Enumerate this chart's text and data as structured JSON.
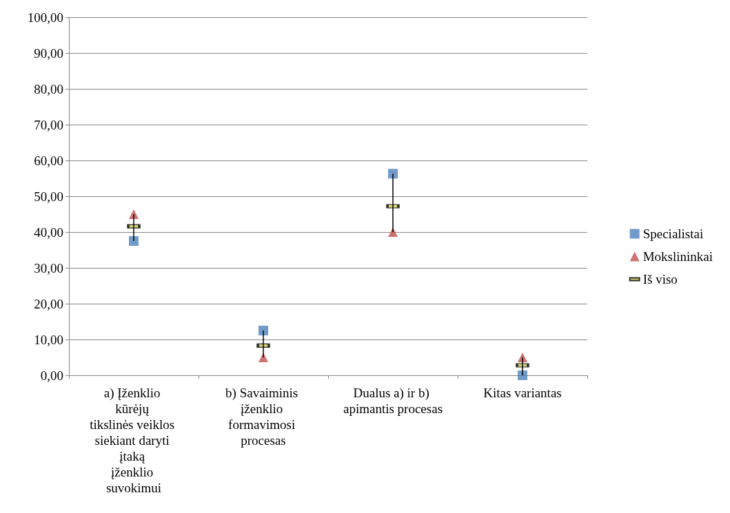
{
  "chart_data": {
    "type": "scatter",
    "categories": [
      "a) Įženklio kūrėjų tikslinės veiklos siekiant daryti įtaką įženklio suvokimui",
      "b) Savaiminis įženklio formavimosi procesas",
      "Dualus a) ir b) apimantis procesas",
      "Kitas variantas"
    ],
    "series": [
      {
        "name": "Specialistai",
        "color": "#4f81bd",
        "marker": "square",
        "values": [
          37.5,
          12.5,
          56.3,
          0
        ]
      },
      {
        "name": "Mokslininkai",
        "color": "#c0504d",
        "marker": "triangle",
        "values": [
          45,
          5,
          40,
          5
        ]
      },
      {
        "name": "Iš viso",
        "color": "#000000",
        "values": [
          41.6,
          8.3,
          47.2,
          2.8
        ]
      }
    ],
    "ylim": [
      0,
      100
    ],
    "yticks": [
      {
        "value": 0,
        "label": "0,00"
      },
      {
        "value": 10,
        "label": "10,00"
      },
      {
        "value": 20,
        "label": "20,00"
      },
      {
        "value": 30,
        "label": "30,00"
      },
      {
        "value": 40,
        "label": "40,00"
      },
      {
        "value": 50,
        "label": "50,00"
      },
      {
        "value": 60,
        "label": "60,00"
      },
      {
        "value": 70,
        "label": "70,00"
      },
      {
        "value": 80,
        "label": "80,00"
      },
      {
        "value": 90,
        "label": "90,00"
      },
      {
        "value": 100,
        "label": "100,00"
      }
    ],
    "grid": "y",
    "legend": "right"
  }
}
